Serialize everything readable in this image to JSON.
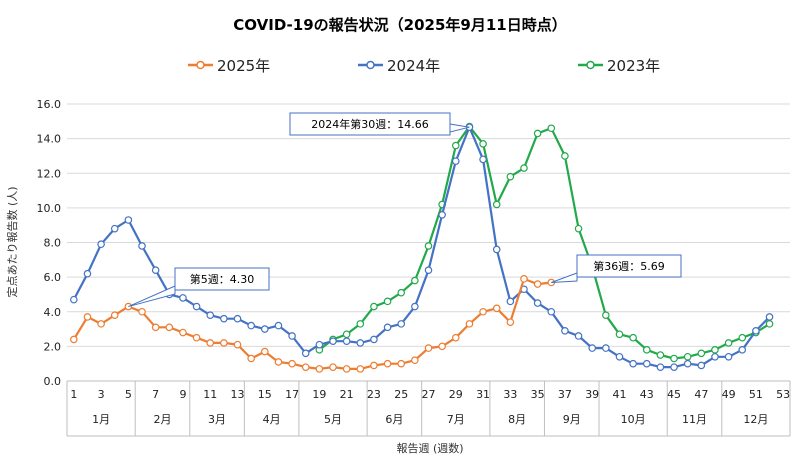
{
  "chart_data": {
    "type": "line",
    "title": "COVID-19の報告状況（2025年9月11日時点）",
    "xlabel": "報告週 (週数)",
    "ylabel": "定点あたり報告数 (人)",
    "ylim": [
      0,
      16
    ],
    "yticks": [
      "0.0",
      "2.0",
      "4.0",
      "6.0",
      "8.0",
      "10.0",
      "12.0",
      "14.0",
      "16.0"
    ],
    "x_tick_labels": [
      "1",
      "3",
      "5",
      "7",
      "9",
      "11",
      "13",
      "15",
      "17",
      "19",
      "21",
      "23",
      "25",
      "27",
      "29",
      "31",
      "33",
      "35",
      "37",
      "39",
      "41",
      "43",
      "45",
      "47",
      "49",
      "51",
      "53"
    ],
    "months": [
      {
        "label": "1月",
        "start": 0.5,
        "end": 5.5
      },
      {
        "label": "2月",
        "start": 5.5,
        "end": 9.5
      },
      {
        "label": "3月",
        "start": 9.5,
        "end": 13.5
      },
      {
        "label": "4月",
        "start": 13.5,
        "end": 17.5
      },
      {
        "label": "5月",
        "start": 17.5,
        "end": 22.5
      },
      {
        "label": "6月",
        "start": 22.5,
        "end": 26.5
      },
      {
        "label": "7月",
        "start": 26.5,
        "end": 31.5
      },
      {
        "label": "8月",
        "start": 31.5,
        "end": 35.5
      },
      {
        "label": "9月",
        "start": 35.5,
        "end": 39.5
      },
      {
        "label": "10月",
        "start": 39.5,
        "end": 44.5
      },
      {
        "label": "11月",
        "start": 44.5,
        "end": 48.5
      },
      {
        "label": "12月",
        "start": 48.5,
        "end": 53.5
      }
    ],
    "grid": true,
    "legend_position": "top",
    "series": [
      {
        "name": "2025年",
        "color": "#ED7D31",
        "start_week": 1,
        "values": [
          2.4,
          3.7,
          3.3,
          3.8,
          4.3,
          4.0,
          3.1,
          3.1,
          2.8,
          2.5,
          2.2,
          2.2,
          2.1,
          1.3,
          1.7,
          1.1,
          1.0,
          0.8,
          0.7,
          0.8,
          0.7,
          0.7,
          0.9,
          1.0,
          1.0,
          1.2,
          1.9,
          2.0,
          2.5,
          3.3,
          4.0,
          4.2,
          3.4,
          5.9,
          5.6,
          5.69
        ]
      },
      {
        "name": "2024年",
        "color": "#4472C4",
        "start_week": 1,
        "values": [
          4.7,
          6.2,
          7.9,
          8.8,
          9.3,
          7.8,
          6.4,
          5.0,
          4.8,
          4.3,
          3.8,
          3.6,
          3.6,
          3.2,
          3.0,
          3.2,
          2.6,
          1.6,
          2.1,
          2.3,
          2.3,
          2.2,
          2.4,
          3.1,
          3.3,
          4.3,
          6.4,
          9.6,
          12.7,
          14.66,
          12.8,
          7.6,
          4.6,
          5.3,
          4.5,
          4.0,
          2.9,
          2.6,
          1.9,
          1.9,
          1.4,
          1.0,
          1.0,
          0.8,
          0.8,
          1.0,
          0.9,
          1.4,
          1.4,
          1.8,
          2.9,
          3.7
        ]
      },
      {
        "name": "2023年",
        "color": "#22A94B",
        "start_week": 19,
        "values": [
          1.8,
          2.4,
          2.7,
          3.3,
          4.3,
          4.6,
          5.1,
          5.8,
          7.8,
          10.2,
          13.6,
          14.7,
          13.7,
          10.2,
          11.8,
          12.3,
          14.3,
          14.6,
          13.0,
          8.8,
          6.6,
          3.8,
          2.7,
          2.5,
          1.8,
          1.5,
          1.3,
          1.4,
          1.6,
          1.8,
          2.2,
          2.5,
          2.8,
          3.3
        ]
      }
    ],
    "annotations": [
      {
        "text": "2024年第30週：14.66",
        "series": "2024年",
        "week": 30,
        "value": 14.66
      },
      {
        "text": "第5週：4.30",
        "series": "2025年",
        "week": 5,
        "value": 4.3
      },
      {
        "text": "第36週：5.69",
        "series": "2025年",
        "week": 36,
        "value": 5.69
      }
    ]
  }
}
